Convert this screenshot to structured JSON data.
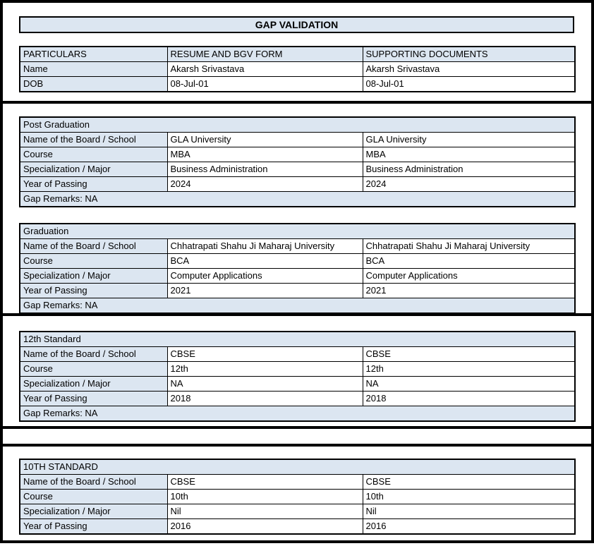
{
  "title": "GAP VALIDATION",
  "colors": {
    "header_fill": "#dce6f1",
    "border": "#000000",
    "page_bg": "#ffffff"
  },
  "particulars": {
    "headers": [
      "PARTICULARS",
      "RESUME AND BGV FORM",
      "SUPPORTING DOCUMENTS"
    ],
    "rows": [
      {
        "label": "Name",
        "resume": "Akarsh Srivastava",
        "docs": "Akarsh Srivastava"
      },
      {
        "label": "DOB",
        "resume": "08-Jul-01",
        "docs": "08-Jul-01"
      }
    ]
  },
  "sections": [
    {
      "title": "Post Graduation",
      "rows": [
        {
          "label": "Name of the Board / School",
          "resume": "GLA University",
          "docs": "GLA University"
        },
        {
          "label": "Course",
          "resume": "MBA",
          "docs": "MBA"
        },
        {
          "label": "Specialization / Major",
          "resume": "Business Administration",
          "docs": "Business Administration"
        },
        {
          "label": "Year of Passing",
          "resume": "2024",
          "docs": "2024"
        }
      ],
      "gap_remarks": "Gap Remarks: NA"
    },
    {
      "title": "Graduation",
      "rows": [
        {
          "label": "Name of the Board / School",
          "resume": "Chhatrapati Shahu Ji Maharaj University",
          "docs": "Chhatrapati Shahu Ji Maharaj University"
        },
        {
          "label": "Course",
          "resume": "BCA",
          "docs": "BCA"
        },
        {
          "label": "Specialization / Major",
          "resume": "Computer Applications",
          "docs": "Computer Applications"
        },
        {
          "label": "Year of Passing",
          "resume": "2021",
          "docs": "2021"
        }
      ],
      "gap_remarks": "Gap Remarks: NA"
    },
    {
      "title": "12th Standard",
      "rows": [
        {
          "label": "Name of the Board / School",
          "resume": "CBSE",
          "docs": "CBSE"
        },
        {
          "label": "Course",
          "resume": "12th",
          "docs": "12th"
        },
        {
          "label": "Specialization / Major",
          "resume": "NA",
          "docs": "NA"
        },
        {
          "label": "Year of Passing",
          "resume": "2018",
          "docs": "2018"
        }
      ],
      "gap_remarks": "Gap Remarks: NA"
    },
    {
      "title": "10TH STANDARD",
      "rows": [
        {
          "label": "Name of the Board / School",
          "resume": "CBSE",
          "docs": "CBSE"
        },
        {
          "label": "Course",
          "resume": "10th",
          "docs": "10th"
        },
        {
          "label": "Specialization / Major",
          "resume": "Nil",
          "docs": "Nil"
        },
        {
          "label": "Year of Passing",
          "resume": "2016",
          "docs": "2016"
        }
      ]
    }
  ]
}
